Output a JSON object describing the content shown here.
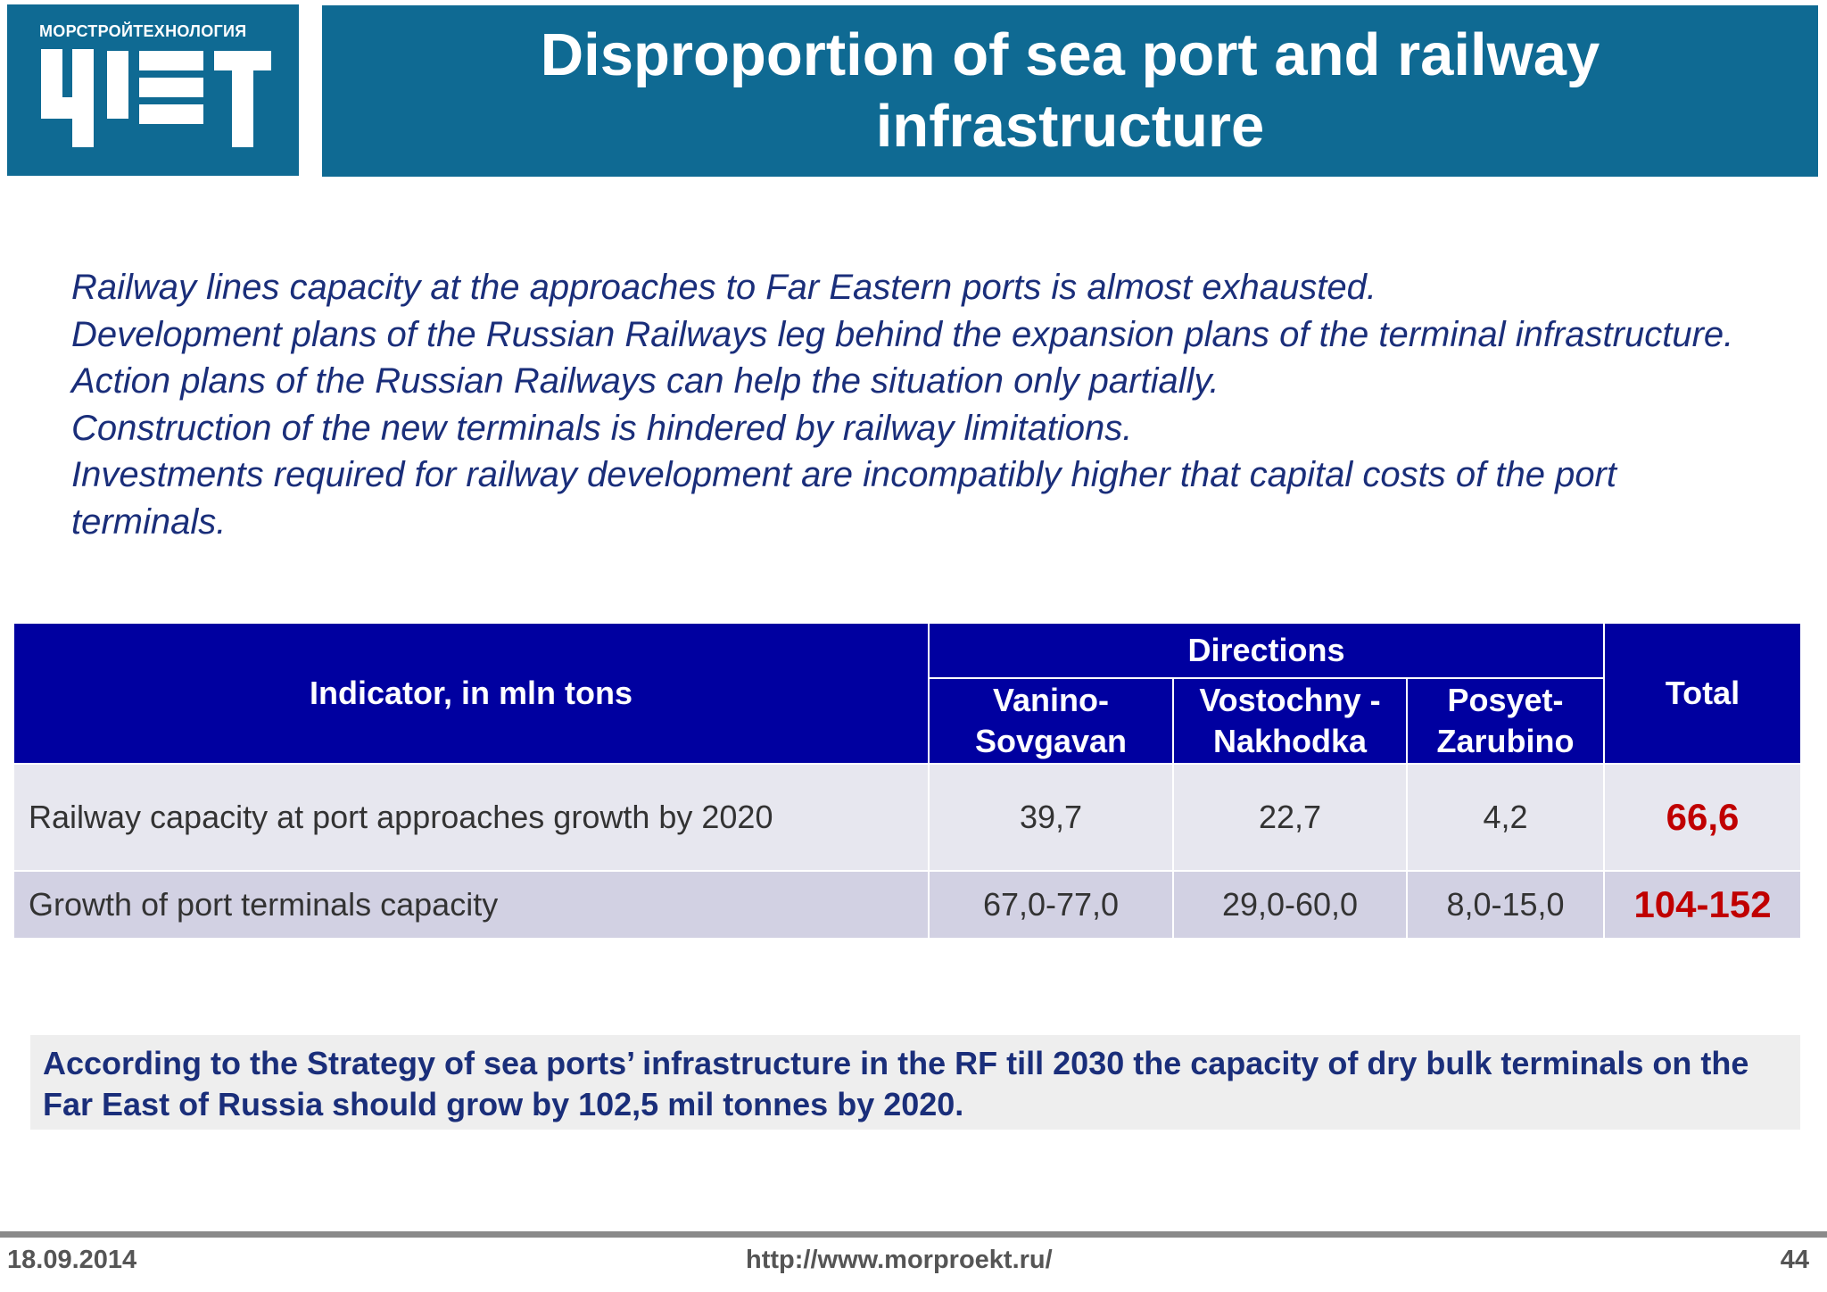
{
  "logo": {
    "caption": "МОРСТРОЙТЕХНОЛОГИЯ",
    "mark_letters": "МСТ",
    "background_color": "#0f6a93"
  },
  "title": "Disproportion of sea port and railway infrastructure",
  "intro": [
    "Railway lines capacity at the approaches to Far Eastern ports is almost exhausted.",
    "Development plans of the Russian Railways leg behind the expansion plans of the terminal infrastructure. Action plans of the Russian Railways can help the situation only partially.",
    "Construction of the new terminals is hindered by railway limitations.",
    "Investments required for railway development are incompatibly higher that capital costs of the port terminals."
  ],
  "table": {
    "header": {
      "indicator": "Indicator, in mln tons",
      "directions": "Directions",
      "total": "Total",
      "columns": [
        "Vanino-Sovgavan",
        "Vostochny - Nakhodka",
        "Posyet-Zarubino"
      ]
    },
    "rows": [
      {
        "label": "Railway capacity at port approaches growth by 2020",
        "values": [
          "39,7",
          "22,7",
          "4,2"
        ],
        "total": "66,6"
      },
      {
        "label": "Growth of port terminals capacity",
        "values": [
          "67,0-77,0",
          "29,0-60,0",
          "8,0-15,0"
        ],
        "total": "104-152"
      }
    ]
  },
  "strategy": "According to the Strategy of sea ports’ infrastructure in the RF till 2030 the capacity of dry bulk terminals on the Far East of Russia should grow by 102,5 mil tonnes by 2020.",
  "footer": {
    "date": "18.09.2014",
    "url": "http://www.morproekt.ru/",
    "page": "44"
  },
  "colors": {
    "header_blue": "#0f6a93",
    "table_header": "#0000a0",
    "total_red": "#c00000",
    "body_text": "#1a2e7a"
  }
}
